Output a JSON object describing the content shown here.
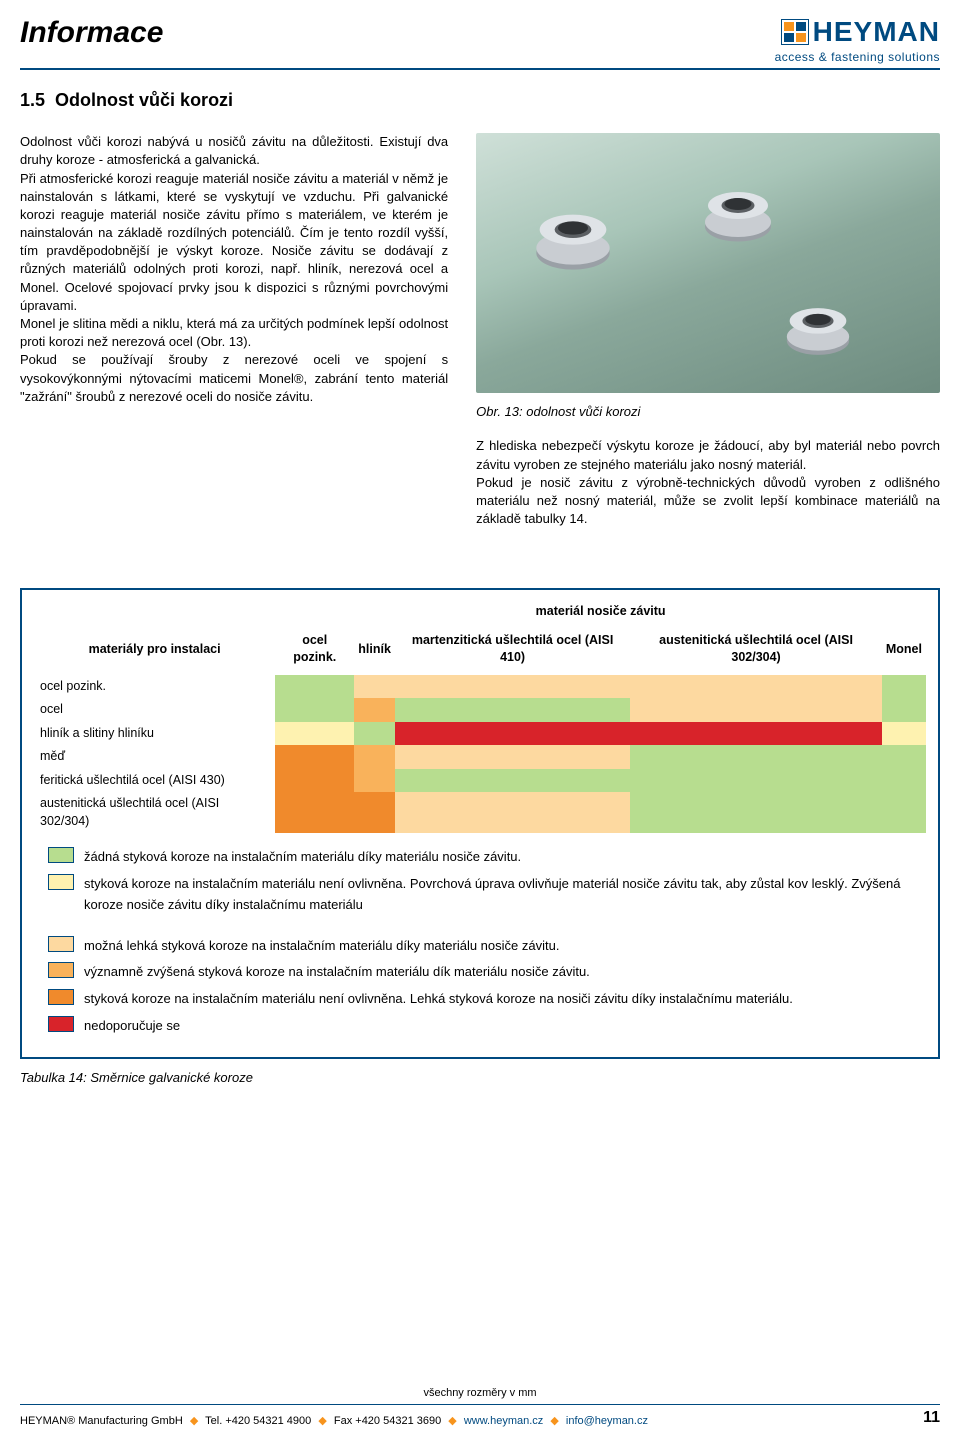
{
  "header": {
    "title": "Informace",
    "logo_main": "HEYMAN",
    "logo_sub": "access & fastening solutions"
  },
  "section": {
    "number": "1.5",
    "title": "Odolnost vůči korozi"
  },
  "body_left": {
    "p1": "Odolnost vůči korozi nabývá u nosičů závitu na důležitosti. Existují dva druhy koroze - atmosferická a galvanická.",
    "p2": "Při atmosferické korozi reaguje materiál nosiče závitu a materiál v němž je nainstalován s látkami, které se vyskytují ve vzduchu. Při galvanické korozi reaguje materiál nosiče závitu přímo s materiálem, ve kterém je nainstalován na základě rozdílných potenciálů. Čím je tento rozdíl vyšší, tím pravděpodobnější je výskyt koroze. Nosiče závitu se dodávají z různých materiálů odolných proti korozi, např. hliník, nerezová ocel a Monel. Ocelové spojovací prvky jsou k dispozici s různými povrchovými úpravami.",
    "p3": "Monel je slitina mědi a niklu, která má za určitých podmínek lepší odolnost proti korozi než nerezová ocel (Obr. 13).",
    "p4": "Pokud se používají šrouby z nerezové oceli ve spojení s vysokovýkonnými nýtovacími maticemi Monel®, zabrání tento materiál \"zažrání\" šroubů z nerezové oceli do nosiče závitu."
  },
  "body_right": {
    "caption": "Obr. 13: odolnost vůči korozi",
    "p1": "Z hlediska nebezpečí výskytu koroze je žádoucí, aby byl materiál nebo povrch závitu vyroben ze stejného materiálu jako nosný materiál.",
    "p2": "Pokud je nosič závitu z výrobně-technických důvodů vyroben z odlišného materiálu než nosný materiál, může se zvolit lepší kombinace materiálů na základě tabulky 14."
  },
  "table": {
    "row_header": "materiály pro instalaci",
    "col_group_header": "materiál nosiče závitu",
    "columns": [
      "ocel pozink.",
      "hliník",
      "martenzitická ušlechtilá ocel (AISI 410)",
      "austenitická ušlechtilá ocel (AISI 302/304)",
      "Monel"
    ],
    "rows": [
      "ocel pozink.",
      "ocel",
      "hliník a slitiny hliníku",
      "měď",
      "feritická ušlechtilá ocel (AISI 430)",
      "austenitická ušlechtilá ocel (AISI 302/304)"
    ],
    "colors": {
      "green": "#b7dd8f",
      "yellow": "#fef2b0",
      "lightor": "#fdd9a0",
      "orange": "#f9b25b",
      "darkorange": "#f08a2c",
      "red": "#d8232a"
    },
    "matrix": [
      [
        "green",
        "lightor",
        "lightor",
        "lightor",
        "green"
      ],
      [
        "green",
        "orange",
        "green",
        "lightor",
        "green"
      ],
      [
        "yellow",
        "green",
        "red",
        "red",
        "yellow"
      ],
      [
        "darkorange",
        "orange",
        "lightor",
        "green",
        "green"
      ],
      [
        "darkorange",
        "orange",
        "green",
        "green",
        "green"
      ],
      [
        "darkorange",
        "darkorange",
        "lightor",
        "green",
        "green"
      ]
    ],
    "legend": [
      {
        "color": "green",
        "text": "žádná styková koroze na instalačním materiálu díky materiálu nosiče závitu."
      },
      {
        "color": "yellow",
        "text": "styková koroze na instalačním materiálu není ovlivněna. Povrchová úprava ovlivňuje materiál nosiče závitu tak, aby zůstal kov lesklý. Zvýšená koroze nosiče závitu díky instalačnímu materiálu"
      },
      {
        "gap": true
      },
      {
        "color": "lightor",
        "text": "možná lehká styková koroze na instalačním materiálu díky materiálu nosiče závitu."
      },
      {
        "color": "orange",
        "text": "významně zvýšená styková koroze na instalačním materiálu dík materiálu nosiče závitu."
      },
      {
        "color": "darkorange",
        "text": "styková koroze na instalačním materiálu není ovlivněna. Lehká styková koroze na nosiči závitu díky instalačnímu materiálu."
      },
      {
        "color": "red",
        "text": "nedoporučuje se"
      }
    ],
    "caption": "Tabulka 14:  Směrnice galvanické koroze"
  },
  "footer": {
    "note": "všechny rozměry v mm",
    "company": "HEYMAN® Manufacturing GmbH",
    "tel": "Tel. +420 54321 4900",
    "fax": "Fax +420 54321 3690",
    "web": "www.heyman.cz",
    "mail": "info@heyman.cz",
    "page": "11"
  }
}
